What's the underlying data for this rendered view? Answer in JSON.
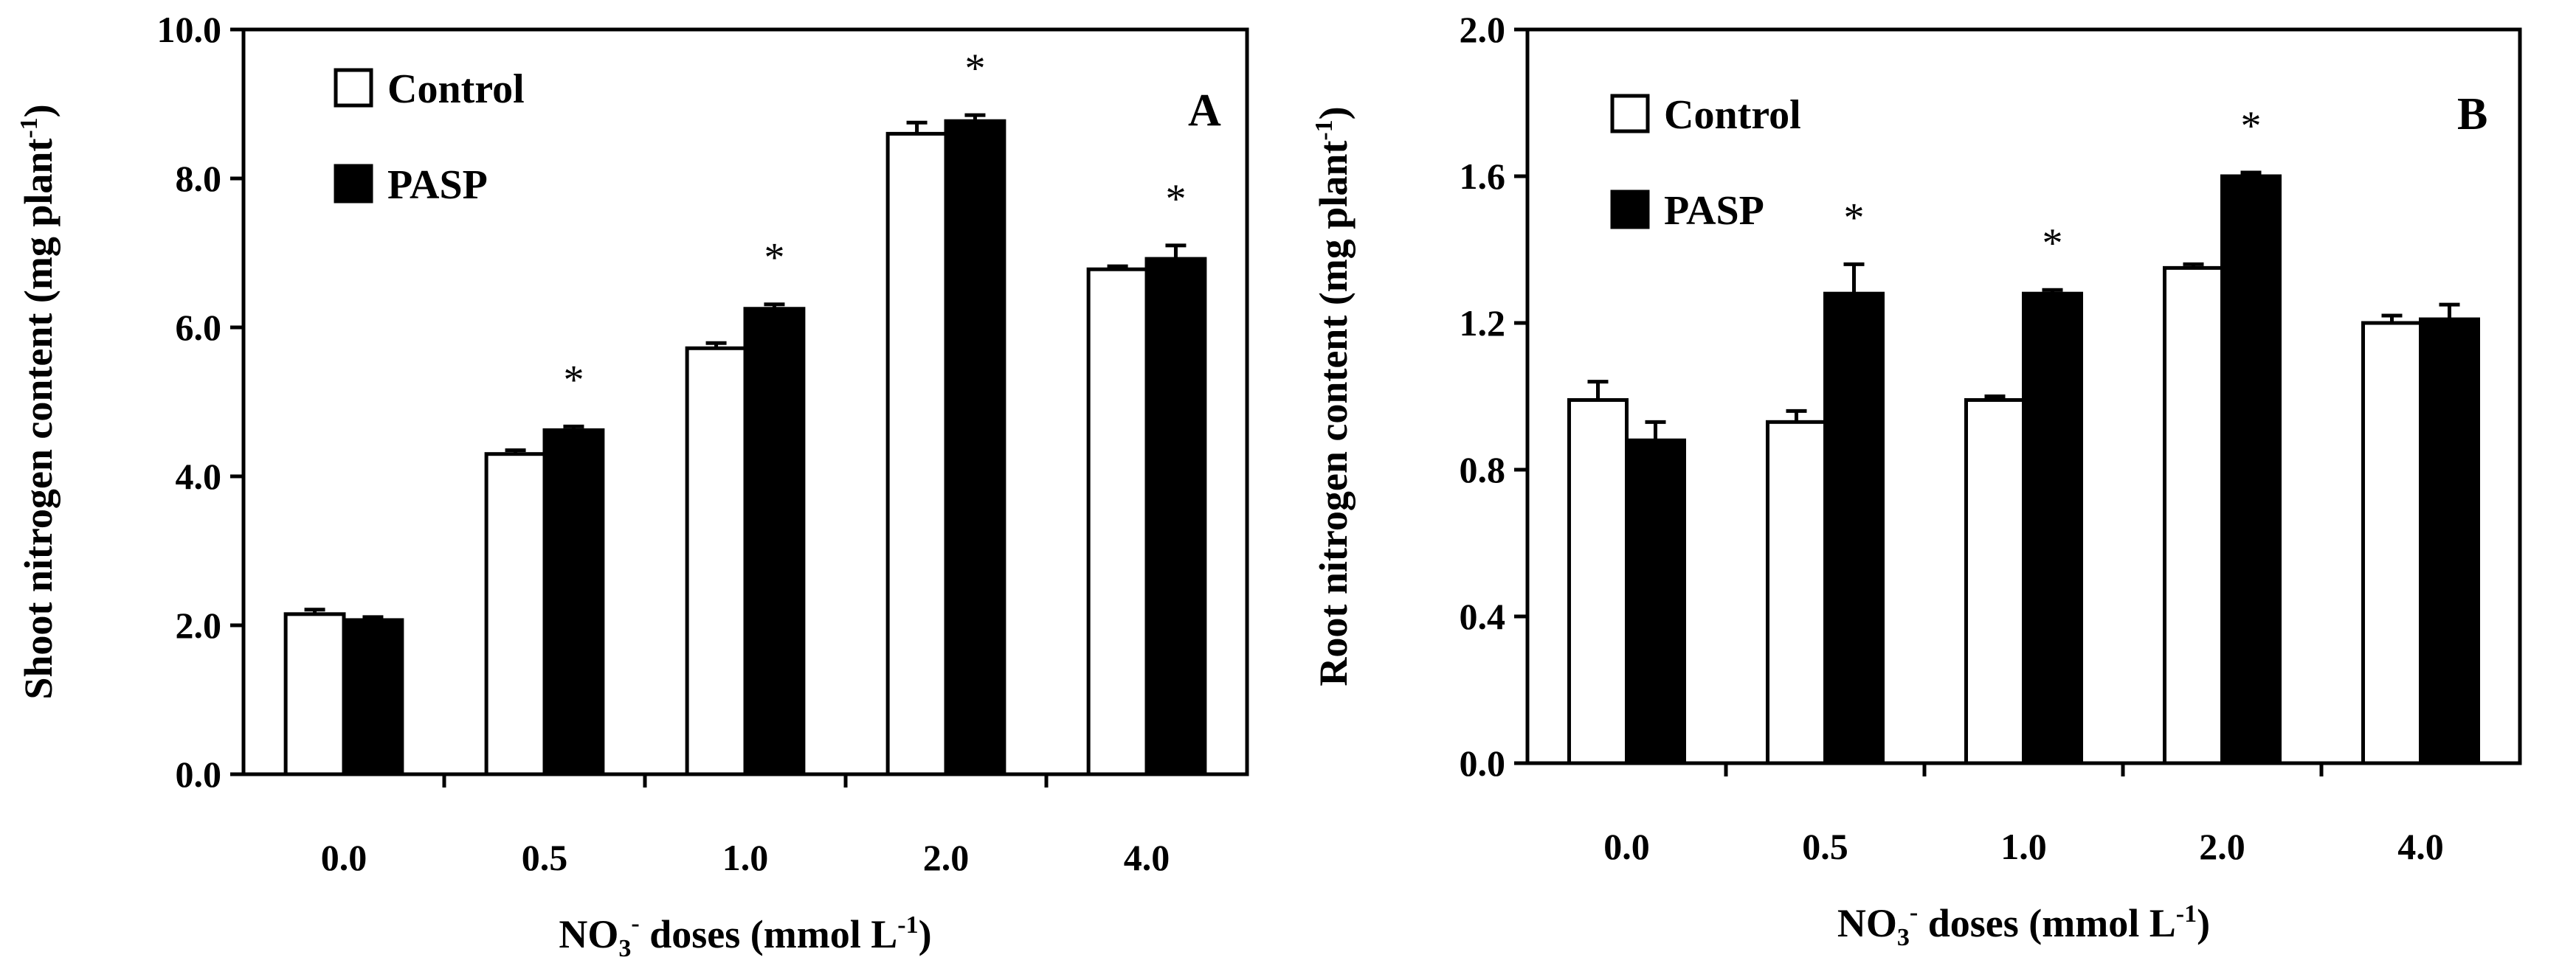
{
  "chart_data": [
    {
      "type": "bar",
      "panel_label": "A",
      "ylabel": {
        "main": "Shoot nitrogen content (mg plant",
        "sup": "-1",
        "close": ")"
      },
      "xlabel": {
        "pre": "NO",
        "sub": "3",
        "sup": "-",
        "mid": " doses (mmol L",
        "sup2": "-1",
        "close": ")"
      },
      "categories": [
        "0.0",
        "0.5",
        "1.0",
        "2.0",
        "4.0"
      ],
      "ylim": [
        0,
        10
      ],
      "yticks": [
        "0.0",
        "2.0",
        "4.0",
        "6.0",
        "8.0",
        "10.0"
      ],
      "series": [
        {
          "name": "Control",
          "fill": "#ffffff",
          "values": [
            2.15,
            4.3,
            5.72,
            8.6,
            6.78
          ],
          "errors": [
            0.06,
            0.05,
            0.07,
            0.15,
            0.04
          ]
        },
        {
          "name": "PASP",
          "fill": "#000000",
          "values": [
            2.07,
            4.62,
            6.25,
            8.77,
            6.92
          ],
          "errors": [
            0.04,
            0.05,
            0.06,
            0.08,
            0.18
          ]
        }
      ],
      "significance": [
        "",
        "*",
        "*",
        "*",
        "*"
      ],
      "legend_position": "top-left"
    },
    {
      "type": "bar",
      "panel_label": "B",
      "ylabel": {
        "main": "Root nitrogen content (mg plant",
        "sup": "-1",
        "close": ")"
      },
      "xlabel": {
        "pre": "NO",
        "sub": "3",
        "sup": "-",
        "mid": " doses (mmol L",
        "sup2": "-1",
        "close": ")"
      },
      "categories": [
        "0.0",
        "0.5",
        "1.0",
        "2.0",
        "4.0"
      ],
      "ylim": [
        0,
        2
      ],
      "yticks": [
        "0.0",
        "0.4",
        "0.8",
        "1.2",
        "1.6",
        "2.0"
      ],
      "series": [
        {
          "name": "Control",
          "fill": "#ffffff",
          "values": [
            0.99,
            0.93,
            0.99,
            1.35,
            1.2
          ],
          "errors": [
            0.05,
            0.03,
            0.01,
            0.01,
            0.02
          ]
        },
        {
          "name": "PASP",
          "fill": "#000000",
          "values": [
            0.88,
            1.28,
            1.28,
            1.6,
            1.21
          ],
          "errors": [
            0.05,
            0.08,
            0.01,
            0.01,
            0.04
          ]
        }
      ],
      "significance": [
        "",
        "*",
        "*",
        "*",
        ""
      ],
      "legend_position": "top-left"
    }
  ]
}
